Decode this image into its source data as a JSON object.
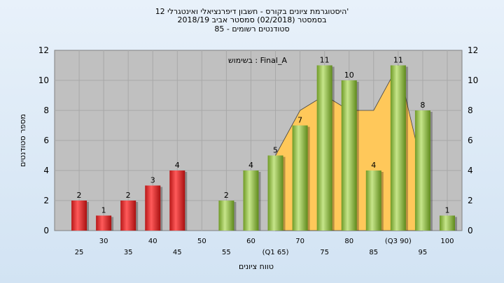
{
  "chart_data": {
    "type": "bar",
    "title_lines": [
      "היסטוגרמת ציונים בקורס - חשבון דיפרנציאלי ואינטגרלי 12'",
      "בסמסטר  (02/2018)  סמסטר אביב 2018/19",
      "סטודנטים רשומים - 85"
    ],
    "legend_text": "בשימוש : Final_A",
    "xlabel": "טווח ציונים",
    "ylabel": "מספר סטודנטים",
    "ylim": [
      0,
      12
    ],
    "yticks": [
      0,
      2,
      4,
      6,
      8,
      10,
      12
    ],
    "categories": [
      "25",
      "30",
      "35",
      "40",
      "45",
      "50",
      "55",
      "60",
      "65",
      "70",
      "75",
      "80",
      "85",
      "90",
      "95",
      "100"
    ],
    "category_labels": [
      "25",
      "30",
      "35",
      "40",
      "45",
      "50",
      "55",
      "60",
      "(Q1 65)",
      "70",
      "75",
      "80",
      "85",
      "(Q3 90)",
      "95",
      "100"
    ],
    "values": [
      2,
      1,
      2,
      3,
      4,
      0,
      2,
      4,
      5,
      7,
      11,
      10,
      4,
      11,
      8,
      1
    ],
    "value_labels": [
      "2",
      "1",
      "2",
      "3",
      "4",
      "",
      "2",
      "4",
      "5",
      "7",
      "11",
      "10",
      "4",
      "11",
      "8",
      "1"
    ],
    "failing_categories": [
      "25",
      "30",
      "35",
      "40",
      "45"
    ],
    "area_categories": [
      "65",
      "70",
      "75",
      "80",
      "85",
      "90",
      "95"
    ],
    "area_values": [
      5,
      8,
      9,
      8,
      8,
      11,
      4
    ],
    "grid": true,
    "colors": {
      "plot_bg": "#c0c0c0",
      "fail_bar": "#e53030",
      "pass_bar": "#99c44a",
      "area": "#ffc85a",
      "grid": "#a8a8a8"
    }
  }
}
